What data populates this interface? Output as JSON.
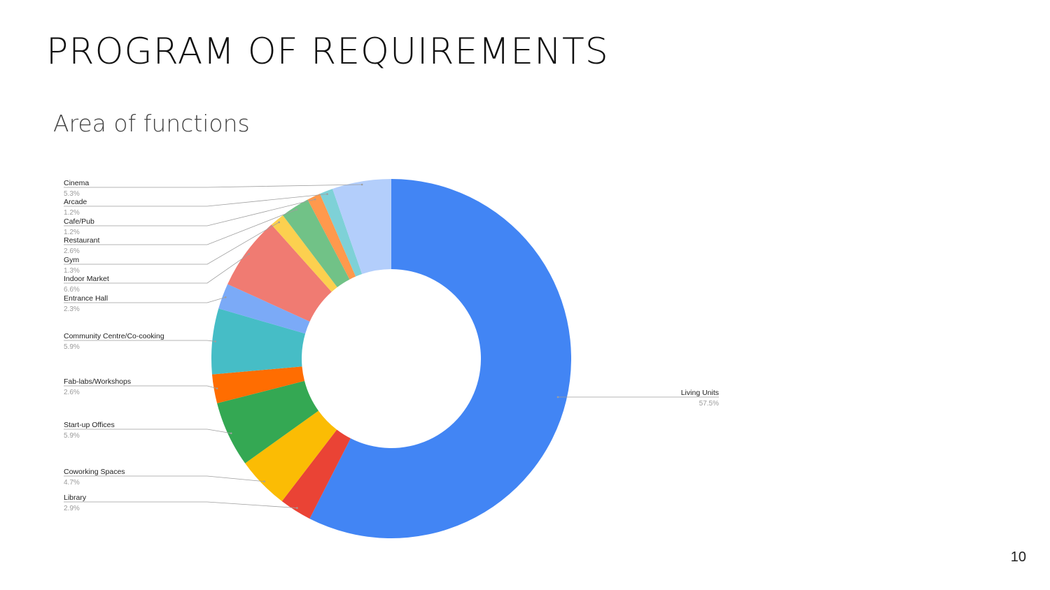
{
  "slide": {
    "title": "PROGRAM OF REQUIREMENTS",
    "subtitle": "Area of functions",
    "page_number": "10"
  },
  "chart_data": {
    "type": "pie",
    "donut": true,
    "start": "top, clockwise",
    "legend": "labels with leader lines",
    "slices": [
      {
        "label": "Living Units",
        "value": 57.5,
        "display": "57.5%",
        "color": "#4285F4"
      },
      {
        "label": "Library",
        "value": 2.9,
        "display": "2.9%",
        "color": "#EA4335"
      },
      {
        "label": "Coworking Spaces",
        "value": 4.7,
        "display": "4.7%",
        "color": "#FBBC04"
      },
      {
        "label": "Start-up Offices",
        "value": 5.9,
        "display": "5.9%",
        "color": "#34A853"
      },
      {
        "label": "Fab-labs/Workshops",
        "value": 2.6,
        "display": "2.6%",
        "color": "#FF6D01"
      },
      {
        "label": "Community Centre/Co-cooking",
        "value": 5.9,
        "display": "5.9%",
        "color": "#46BDC6"
      },
      {
        "label": "Entrance Hall",
        "value": 2.3,
        "display": "2.3%",
        "color": "#7BAAF7"
      },
      {
        "label": "Indoor Market",
        "value": 6.6,
        "display": "6.6%",
        "color": "#F07B72"
      },
      {
        "label": "Gym",
        "value": 1.3,
        "display": "1.3%",
        "color": "#FCD04F"
      },
      {
        "label": "Restaurant",
        "value": 2.6,
        "display": "2.6%",
        "color": "#71C287"
      },
      {
        "label": "Cafe/Pub",
        "value": 1.2,
        "display": "1.2%",
        "color": "#FF994D"
      },
      {
        "label": "Arcade",
        "value": 1.2,
        "display": "1.2%",
        "color": "#7ED1D7"
      },
      {
        "label": "Cinema",
        "value": 5.3,
        "display": "5.3%",
        "color": "#B3CEFB"
      }
    ]
  }
}
